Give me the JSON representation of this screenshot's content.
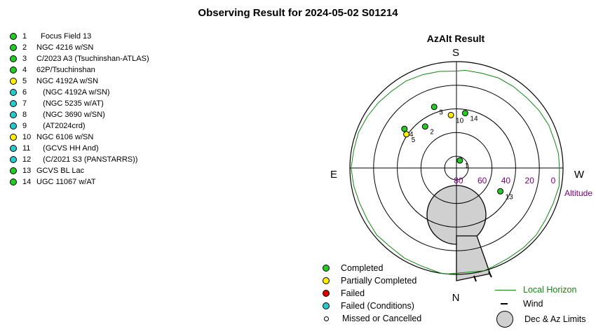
{
  "title": "Observing Result for 2024-05-02 S01214",
  "azalt_title": "AzAlt Result",
  "compass": {
    "S": "S",
    "N": "N",
    "E": "E",
    "W": "W"
  },
  "altitude_label": "Altitude",
  "altitude_ticks": [
    "80",
    "60",
    "40",
    "20",
    "0"
  ],
  "colors": {
    "completed": "#22cc22",
    "partial": "#ffee00",
    "failed": "#dd0000",
    "failed_conditions": "#22cccc",
    "missed": "#ffffff",
    "horizon": "#118811",
    "limits": "#d0d0d0",
    "altitude_text": "#7a0080"
  },
  "targets": [
    {
      "num": "1",
      "name": "  Focus Field 13",
      "status": "completed"
    },
    {
      "num": "2",
      "name": "NGC 4216 w/SN",
      "status": "completed"
    },
    {
      "num": "3",
      "name": "C/2023 A3 (Tsuchinshan-ATLAS)",
      "status": "completed"
    },
    {
      "num": "4",
      "name": "62P/Tsuchinshan",
      "status": "completed"
    },
    {
      "num": "5",
      "name": "NGC 4192A w/SN",
      "status": "partial"
    },
    {
      "num": "6",
      "name": "   (NGC 4192A w/SN)",
      "status": "failed_conditions"
    },
    {
      "num": "7",
      "name": "   (NGC 5235 w/AT)",
      "status": "failed_conditions"
    },
    {
      "num": "8",
      "name": "   (NGC 3690 w/SN)",
      "status": "failed_conditions"
    },
    {
      "num": "9",
      "name": "   (AT2024crd)",
      "status": "failed_conditions"
    },
    {
      "num": "10",
      "name": "NGC 6106 w/SN",
      "status": "partial"
    },
    {
      "num": "11",
      "name": "   (GCVS HH And)",
      "status": "failed_conditions"
    },
    {
      "num": "12",
      "name": "   (C/2021 S3 (PANSTARRS))",
      "status": "failed_conditions"
    },
    {
      "num": "13",
      "name": "GCVS BL Lac",
      "status": "completed"
    },
    {
      "num": "14",
      "name": "UGC 11067 w/AT",
      "status": "completed"
    }
  ],
  "plot_points": [
    {
      "label": "1",
      "status": "completed",
      "az": 204,
      "alt": 83
    },
    {
      "label": "2",
      "status": "completed",
      "az": 143,
      "alt": 46
    },
    {
      "label": "3",
      "status": "completed",
      "az": 160,
      "alt": 35
    },
    {
      "label": "4",
      "status": "completed",
      "az": 127,
      "alt": 35
    },
    {
      "label": "5",
      "status": "partial",
      "az": 124,
      "alt": 39
    },
    {
      "label": "10",
      "status": "partial",
      "az": 174,
      "alt": 45
    },
    {
      "label": "14",
      "status": "completed",
      "az": 189,
      "alt": 43
    },
    {
      "label": "13",
      "status": "completed",
      "az": 298,
      "alt": 48
    }
  ],
  "legend_left": [
    {
      "key": "completed",
      "label": "Completed"
    },
    {
      "key": "partial",
      "label": "Partially Completed"
    },
    {
      "key": "failed",
      "label": "Failed"
    },
    {
      "key": "failed_conditions",
      "label": "Failed (Conditions)"
    },
    {
      "key": "missed",
      "label": "Missed or Cancelled"
    }
  ],
  "legend_right": {
    "horizon": "Local Horizon",
    "wind": "Wind",
    "limits": "Dec & Az Limits"
  }
}
